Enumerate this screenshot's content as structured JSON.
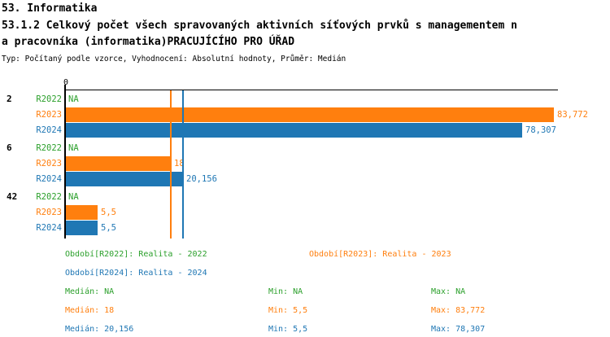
{
  "header": {
    "section_title": "53. Informatika",
    "indicator_title_line1": "53.1.2 Celkový počet všech spravovaných aktivních síťových prvků s managementem n",
    "indicator_title_line2": "a pracovníka (informatika)PRACUJÍCÍHO PRO ÚŘAD",
    "meta": "Typ: Počítaný podle vzorce, Vyhodnocení: Absolutní hodnoty, Průměr: Medián"
  },
  "chart_data": {
    "type": "bar",
    "orientation": "horizontal",
    "axis": {
      "origin_label": "0",
      "xlim": [
        0,
        84.5
      ],
      "grid": false
    },
    "series_colors": {
      "R2022": "#2ca02c",
      "R2023": "#ff7f0e",
      "R2024": "#1f77b4"
    },
    "categories": [
      "2",
      "6",
      "42"
    ],
    "groups": [
      {
        "label": "2",
        "bars": [
          {
            "series": "R2022",
            "value": null,
            "display": "NA"
          },
          {
            "series": "R2023",
            "value": 83.772,
            "display": "83,772"
          },
          {
            "series": "R2024",
            "value": 78.307,
            "display": "78,307"
          }
        ]
      },
      {
        "label": "6",
        "bars": [
          {
            "series": "R2022",
            "value": null,
            "display": "NA"
          },
          {
            "series": "R2023",
            "value": 18,
            "display": "18"
          },
          {
            "series": "R2024",
            "value": 20.156,
            "display": "20,156"
          }
        ]
      },
      {
        "label": "42",
        "bars": [
          {
            "series": "R2022",
            "value": null,
            "display": "NA"
          },
          {
            "series": "R2023",
            "value": 5.5,
            "display": "5,5"
          },
          {
            "series": "R2024",
            "value": 5.5,
            "display": "5,5"
          }
        ]
      }
    ],
    "reference_lines": [
      {
        "series": "R2023",
        "value": 18,
        "meaning": "median R2023"
      },
      {
        "series": "R2024",
        "value": 20.156,
        "meaning": "median R2024"
      }
    ]
  },
  "legend": [
    {
      "series": "R2022",
      "label": "Období[R2022]: Realita - 2022"
    },
    {
      "series": "R2023",
      "label": "Období[R2023]: Realita - 2023"
    },
    {
      "series": "R2024",
      "label": "Období[R2024]: Realita - 2024"
    }
  ],
  "stats": [
    {
      "series": "R2022",
      "median": "Medián: NA",
      "min": "Min: NA",
      "max": "Max: NA"
    },
    {
      "series": "R2023",
      "median": "Medián: 18",
      "min": "Min: 5,5",
      "max": "Max: 83,772"
    },
    {
      "series": "R2024",
      "median": "Medián: 20,156",
      "min": "Min: 5,5",
      "max": "Max: 78,307"
    }
  ]
}
